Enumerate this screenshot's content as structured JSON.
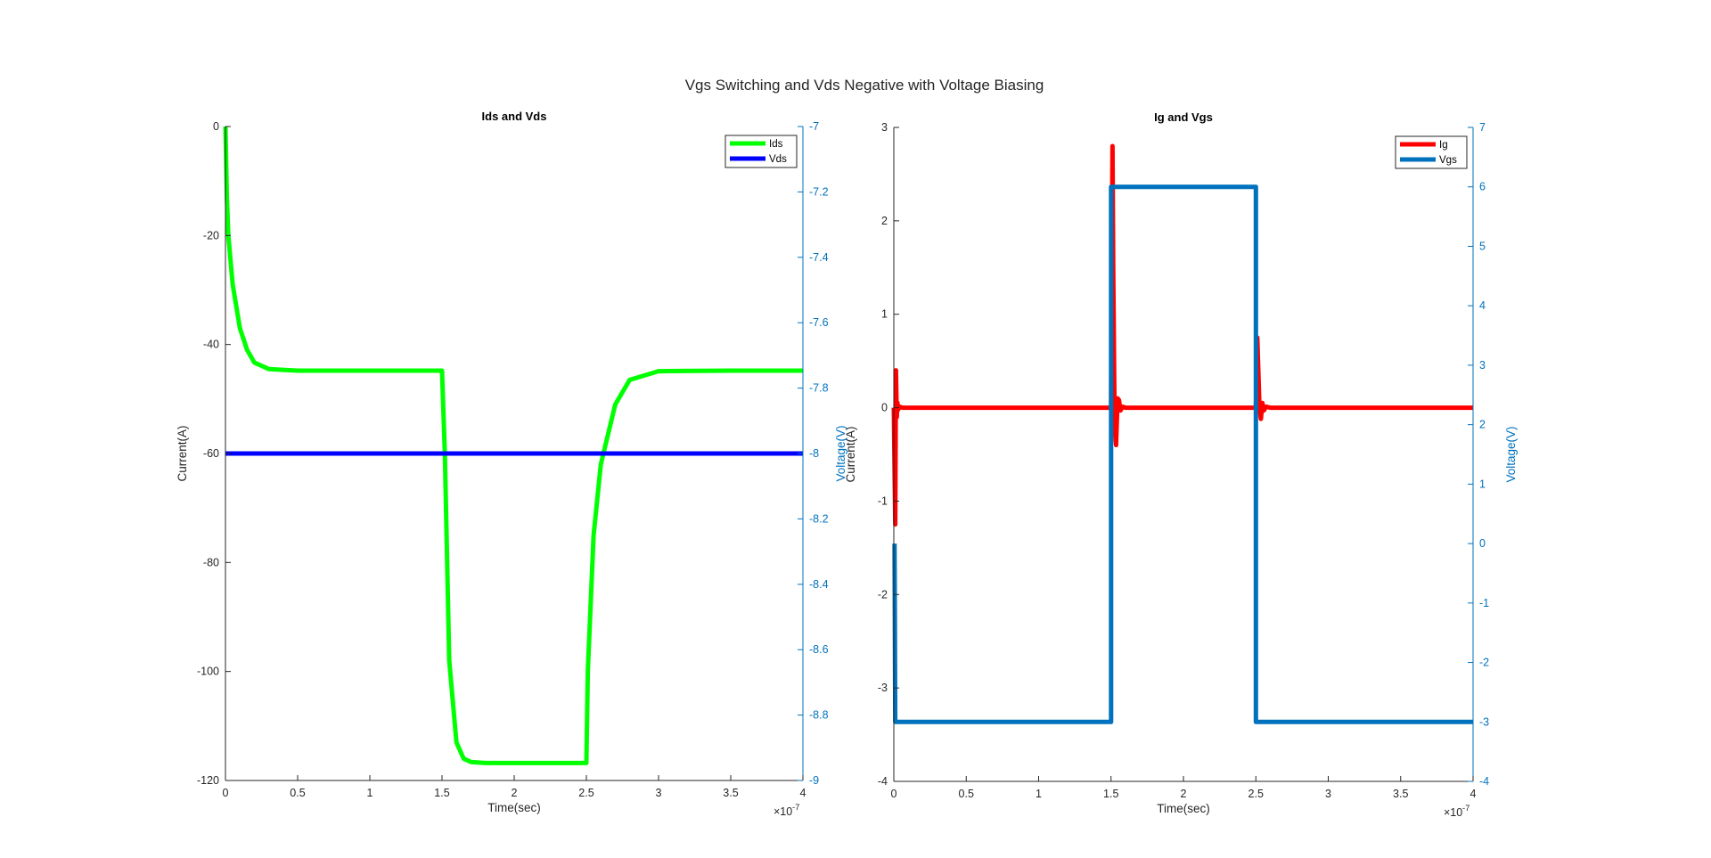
{
  "figure": {
    "title": "Vgs Switching and Vds Negative with Voltage Biasing"
  },
  "chart_data": [
    {
      "type": "line",
      "title": "Ids and Vds",
      "xlabel": "Time(sec)",
      "ylabel": "Current(A)",
      "ylabel_right": "Voltage(V)",
      "x_exponent_label": "×10",
      "x_exponent": "-7",
      "xlim": [
        0,
        4
      ],
      "ylim": [
        -120,
        0
      ],
      "ylim_right": [
        -9,
        -7
      ],
      "x_ticks": [
        "0",
        "0.5",
        "1",
        "1.5",
        "2",
        "2.5",
        "3",
        "3.5",
        "4"
      ],
      "y_ticks": [
        "0",
        "-20",
        "-40",
        "-60",
        "-80",
        "-100",
        "-120"
      ],
      "y_ticks_right": [
        "-7",
        "-7.2",
        "-7.4",
        "-7.6",
        "-7.8",
        "-8",
        "-8.2",
        "-8.4",
        "-8.6",
        "-8.8",
        "-9"
      ],
      "grid": false,
      "legend_position": "top-right",
      "series": [
        {
          "name": "Ids",
          "axis": "left",
          "color": "#00ff00",
          "x": [
            0,
            0.01,
            0.02,
            0.05,
            0.1,
            0.15,
            0.2,
            0.3,
            0.5,
            1.0,
            1.5,
            1.52,
            1.55,
            1.6,
            1.65,
            1.7,
            1.8,
            2.0,
            2.5,
            2.51,
            2.55,
            2.6,
            2.7,
            2.8,
            3.0,
            3.5,
            4.0
          ],
          "y": [
            0,
            -13,
            -20,
            -29,
            -37,
            -41,
            -43.3,
            -44.5,
            -44.8,
            -44.8,
            -44.8,
            -60,
            -98,
            -113,
            -116,
            -116.6,
            -116.8,
            -116.8,
            -116.8,
            -100,
            -75,
            -62,
            -51,
            -46.5,
            -44.9,
            -44.8,
            -44.8
          ]
        },
        {
          "name": "Vds",
          "axis": "right",
          "color": "#0000ff",
          "x": [
            0,
            4
          ],
          "y": [
            -8,
            -8
          ]
        }
      ]
    },
    {
      "type": "line",
      "title": "Ig and Vgs",
      "xlabel": "Time(sec)",
      "ylabel": "Current(A)",
      "ylabel_right": "Voltage(V)",
      "x_exponent_label": "×10",
      "x_exponent": "-7",
      "xlim": [
        0,
        4
      ],
      "ylim": [
        -4,
        3
      ],
      "ylim_right": [
        -4,
        7
      ],
      "x_ticks": [
        "0",
        "0.5",
        "1",
        "1.5",
        "2",
        "2.5",
        "3",
        "3.5",
        "4"
      ],
      "y_ticks": [
        "3",
        "2",
        "1",
        "0",
        "-1",
        "-2",
        "-3",
        "-4"
      ],
      "y_ticks_right": [
        "7",
        "6",
        "5",
        "4",
        "3",
        "2",
        "1",
        "0",
        "-1",
        "-2",
        "-3",
        "-4"
      ],
      "grid": false,
      "legend_position": "top-right",
      "series": [
        {
          "name": "Ig",
          "axis": "left",
          "color": "#ff0000",
          "x": [
            0,
            0.01,
            0.015,
            0.02,
            0.025,
            0.03,
            0.04,
            0.06,
            0.1,
            1.0,
            1.49,
            1.5,
            1.51,
            1.515,
            1.525,
            1.535,
            1.545,
            1.555,
            1.565,
            1.58,
            1.6,
            2.0,
            2.49,
            2.5,
            2.51,
            2.515,
            2.525,
            2.535,
            2.545,
            2.555,
            2.57,
            2.6,
            3.0,
            4.0
          ],
          "y": [
            0,
            -1.25,
            0.4,
            -0.1,
            0.05,
            -0.02,
            0.01,
            0,
            0,
            0,
            0,
            0,
            2.8,
            1.5,
            -0.2,
            -0.4,
            0.1,
            0.08,
            -0.03,
            0.01,
            0,
            0,
            0,
            0,
            0.75,
            0.5,
            0,
            -0.12,
            0.05,
            -0.03,
            0.01,
            0,
            0,
            0
          ]
        },
        {
          "name": "Vgs",
          "axis": "right",
          "color": "#0072bd",
          "x": [
            0.005,
            0.01,
            0.01,
            1.5,
            1.5,
            2.5,
            2.5,
            4.0
          ],
          "y": [
            0,
            -3,
            -3,
            -3,
            6,
            6,
            -3,
            -3
          ]
        }
      ]
    }
  ]
}
